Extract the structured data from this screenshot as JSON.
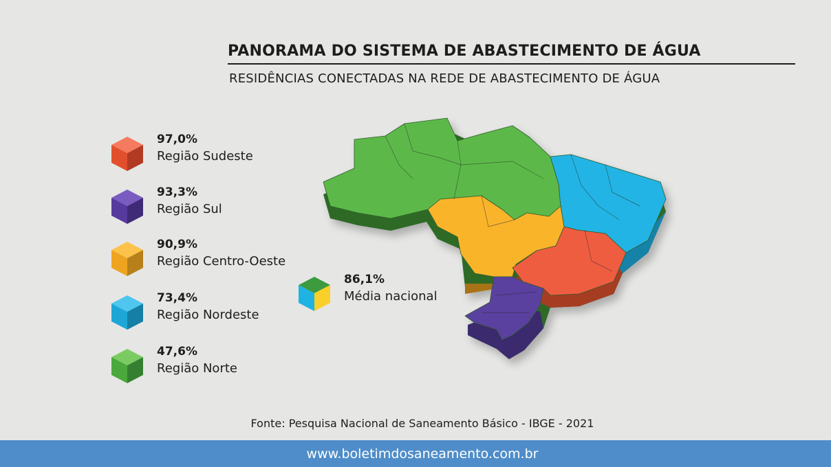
{
  "header": {
    "title": "PANORAMA DO SISTEMA DE ABASTECIMENTO DE ÁGUA",
    "subtitle": "RESIDÊNCIAS CONECTADAS NA REDE DE ABASTECIMENTO DE ÁGUA"
  },
  "legend": [
    {
      "value": "97,0%",
      "label": "Região Sudeste",
      "color": "#ee5b3f"
    },
    {
      "value": "93,3%",
      "label": "Região Sul",
      "color": "#5b3e9f"
    },
    {
      "value": "90,9%",
      "label": "Região Centro-Oeste",
      "color": "#f8b12a"
    },
    {
      "value": "73,4%",
      "label": "Região Nordeste",
      "color": "#1fb3e3"
    },
    {
      "value": "47,6%",
      "label": "Região Norte",
      "color": "#56b847"
    }
  ],
  "national": {
    "value": "86,1%",
    "label": "Média nacional",
    "colors": [
      "#3c9a3f",
      "#1fb3e3",
      "#f9d029"
    ]
  },
  "source": "Fonte: Pesquisa Nacional de Saneamento Básico - IBGE - 2021",
  "footer": {
    "url": "www.boletimdosaneamento.com.br"
  }
}
